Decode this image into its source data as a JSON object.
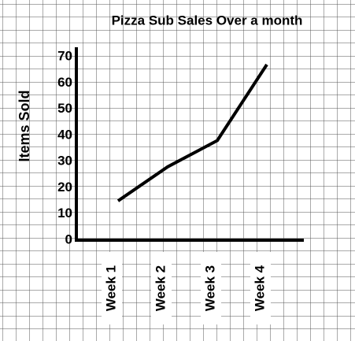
{
  "chart_data": {
    "type": "line",
    "title": "Pizza Sub Sales Over a month",
    "y_label": "Items Sold",
    "categories": [
      "Week 1",
      "Week 2",
      "Week 3",
      "Week 4"
    ],
    "values": [
      15,
      28,
      38,
      67
    ],
    "color": "#000000",
    "ylim": [
      0,
      70
    ],
    "yticks": [
      0,
      10,
      20,
      30,
      40,
      50,
      60,
      70
    ]
  }
}
